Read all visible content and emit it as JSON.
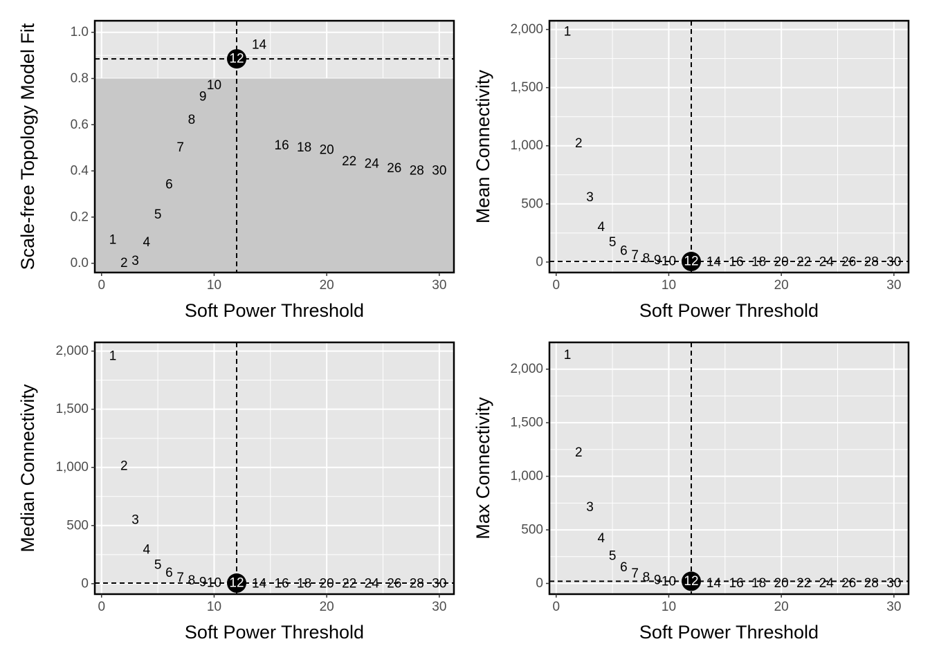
{
  "chart_data": [
    {
      "type": "scatter",
      "id": "sft",
      "xlabel": "Soft Power Threshold",
      "ylabel": "Scale-free Topology Model Fit",
      "xlim": [
        -0.6,
        31.3
      ],
      "ylim": [
        -0.04,
        1.05
      ],
      "x_ticks": [
        0,
        10,
        20,
        30
      ],
      "y_ticks": [
        0.0,
        0.2,
        0.4,
        0.6,
        0.8,
        1.0
      ],
      "y_tick_labels": [
        "0.0",
        "0.2",
        "0.4",
        "0.6",
        "0.8",
        "1.0"
      ],
      "shaded_below": 0.8,
      "selected_power": 12,
      "selected_value": 0.885,
      "points": [
        {
          "x": 1,
          "y": 0.1,
          "label": "1"
        },
        {
          "x": 2,
          "y": 0.0,
          "label": "2"
        },
        {
          "x": 3,
          "y": 0.01,
          "label": "3"
        },
        {
          "x": 4,
          "y": 0.09,
          "label": "4"
        },
        {
          "x": 5,
          "y": 0.21,
          "label": "5"
        },
        {
          "x": 6,
          "y": 0.34,
          "label": "6"
        },
        {
          "x": 7,
          "y": 0.5,
          "label": "7"
        },
        {
          "x": 8,
          "y": 0.62,
          "label": "8"
        },
        {
          "x": 9,
          "y": 0.72,
          "label": "9"
        },
        {
          "x": 10,
          "y": 0.77,
          "label": "10"
        },
        {
          "x": 12,
          "y": 0.885,
          "label": "12"
        },
        {
          "x": 14,
          "y": 0.945,
          "label": "14"
        },
        {
          "x": 16,
          "y": 0.51,
          "label": "16"
        },
        {
          "x": 18,
          "y": 0.5,
          "label": "18"
        },
        {
          "x": 20,
          "y": 0.49,
          "label": "20"
        },
        {
          "x": 22,
          "y": 0.44,
          "label": "22"
        },
        {
          "x": 24,
          "y": 0.43,
          "label": "24"
        },
        {
          "x": 26,
          "y": 0.41,
          "label": "26"
        },
        {
          "x": 28,
          "y": 0.4,
          "label": "28"
        },
        {
          "x": 30,
          "y": 0.4,
          "label": "30"
        }
      ]
    },
    {
      "type": "scatter",
      "id": "mean",
      "xlabel": "Soft Power Threshold",
      "ylabel": "Mean Connectivity",
      "xlim": [
        -0.6,
        31.3
      ],
      "ylim": [
        -90,
        2075
      ],
      "x_ticks": [
        0,
        10,
        20,
        30
      ],
      "y_ticks": [
        0,
        500,
        1000,
        1500,
        2000
      ],
      "y_tick_labels": [
        "0",
        "500",
        "1,000",
        "1,500",
        "2,000"
      ],
      "selected_power": 12,
      "selected_value": 5,
      "points": [
        {
          "x": 1,
          "y": 1980,
          "label": "1"
        },
        {
          "x": 2,
          "y": 1020,
          "label": "2"
        },
        {
          "x": 3,
          "y": 555,
          "label": "3"
        },
        {
          "x": 4,
          "y": 300,
          "label": "4"
        },
        {
          "x": 5,
          "y": 170,
          "label": "5"
        },
        {
          "x": 6,
          "y": 95,
          "label": "6"
        },
        {
          "x": 7,
          "y": 55,
          "label": "7"
        },
        {
          "x": 8,
          "y": 30,
          "label": "8"
        },
        {
          "x": 9,
          "y": 15,
          "label": "9"
        },
        {
          "x": 10,
          "y": 5,
          "label": "10"
        },
        {
          "x": 12,
          "y": 5,
          "label": "12"
        },
        {
          "x": 14,
          "y": 0,
          "label": "14"
        },
        {
          "x": 16,
          "y": 0,
          "label": "16"
        },
        {
          "x": 18,
          "y": 0,
          "label": "18"
        },
        {
          "x": 20,
          "y": 0,
          "label": "20"
        },
        {
          "x": 22,
          "y": 0,
          "label": "22"
        },
        {
          "x": 24,
          "y": 0,
          "label": "24"
        },
        {
          "x": 26,
          "y": 0,
          "label": "26"
        },
        {
          "x": 28,
          "y": 0,
          "label": "28"
        },
        {
          "x": 30,
          "y": 0,
          "label": "30"
        }
      ]
    },
    {
      "type": "scatter",
      "id": "median",
      "xlabel": "Soft Power Threshold",
      "ylabel": "Median Connectivity",
      "xlim": [
        -0.6,
        31.3
      ],
      "ylim": [
        -90,
        2075
      ],
      "x_ticks": [
        0,
        10,
        20,
        30
      ],
      "y_ticks": [
        0,
        500,
        1000,
        1500,
        2000
      ],
      "y_tick_labels": [
        "0",
        "500",
        "1,000",
        "1,500",
        "2,000"
      ],
      "selected_power": 12,
      "selected_value": 5,
      "points": [
        {
          "x": 1,
          "y": 1955,
          "label": "1"
        },
        {
          "x": 2,
          "y": 1010,
          "label": "2"
        },
        {
          "x": 3,
          "y": 545,
          "label": "3"
        },
        {
          "x": 4,
          "y": 290,
          "label": "4"
        },
        {
          "x": 5,
          "y": 160,
          "label": "5"
        },
        {
          "x": 6,
          "y": 90,
          "label": "6"
        },
        {
          "x": 7,
          "y": 50,
          "label": "7"
        },
        {
          "x": 8,
          "y": 25,
          "label": "8"
        },
        {
          "x": 9,
          "y": 12,
          "label": "9"
        },
        {
          "x": 10,
          "y": 5,
          "label": "10"
        },
        {
          "x": 12,
          "y": 5,
          "label": "12"
        },
        {
          "x": 14,
          "y": 0,
          "label": "14"
        },
        {
          "x": 16,
          "y": 0,
          "label": "16"
        },
        {
          "x": 18,
          "y": 0,
          "label": "18"
        },
        {
          "x": 20,
          "y": 0,
          "label": "20"
        },
        {
          "x": 22,
          "y": 0,
          "label": "22"
        },
        {
          "x": 24,
          "y": 0,
          "label": "24"
        },
        {
          "x": 26,
          "y": 0,
          "label": "26"
        },
        {
          "x": 28,
          "y": 0,
          "label": "28"
        },
        {
          "x": 30,
          "y": 0,
          "label": "30"
        }
      ]
    },
    {
      "type": "scatter",
      "id": "max",
      "xlabel": "Soft Power Threshold",
      "ylabel": "Max Connectivity",
      "xlim": [
        -0.6,
        31.3
      ],
      "ylim": [
        -100,
        2250
      ],
      "x_ticks": [
        0,
        10,
        20,
        30
      ],
      "y_ticks": [
        0,
        500,
        1000,
        1500,
        2000
      ],
      "y_tick_labels": [
        "0",
        "500",
        "1,000",
        "1,500",
        "2,000"
      ],
      "selected_power": 12,
      "selected_value": 20,
      "points": [
        {
          "x": 1,
          "y": 2130,
          "label": "1"
        },
        {
          "x": 2,
          "y": 1220,
          "label": "2"
        },
        {
          "x": 3,
          "y": 710,
          "label": "3"
        },
        {
          "x": 4,
          "y": 420,
          "label": "4"
        },
        {
          "x": 5,
          "y": 255,
          "label": "5"
        },
        {
          "x": 6,
          "y": 150,
          "label": "6"
        },
        {
          "x": 7,
          "y": 90,
          "label": "7"
        },
        {
          "x": 8,
          "y": 55,
          "label": "8"
        },
        {
          "x": 9,
          "y": 30,
          "label": "9"
        },
        {
          "x": 10,
          "y": 15,
          "label": "10"
        },
        {
          "x": 12,
          "y": 20,
          "label": "12"
        },
        {
          "x": 14,
          "y": 0,
          "label": "14"
        },
        {
          "x": 16,
          "y": 0,
          "label": "16"
        },
        {
          "x": 18,
          "y": 0,
          "label": "18"
        },
        {
          "x": 20,
          "y": 0,
          "label": "20"
        },
        {
          "x": 22,
          "y": 0,
          "label": "22"
        },
        {
          "x": 24,
          "y": 0,
          "label": "24"
        },
        {
          "x": 26,
          "y": 0,
          "label": "26"
        },
        {
          "x": 28,
          "y": 0,
          "label": "28"
        },
        {
          "x": 30,
          "y": 0,
          "label": "30"
        }
      ]
    }
  ],
  "colors": {
    "panel_background": "#e6e6e6",
    "shaded_region": "#c8c8c8",
    "grid": "#ffffff",
    "border": "#000000",
    "selected_marker": "#000000",
    "tick_text": "#4d4d4d"
  }
}
